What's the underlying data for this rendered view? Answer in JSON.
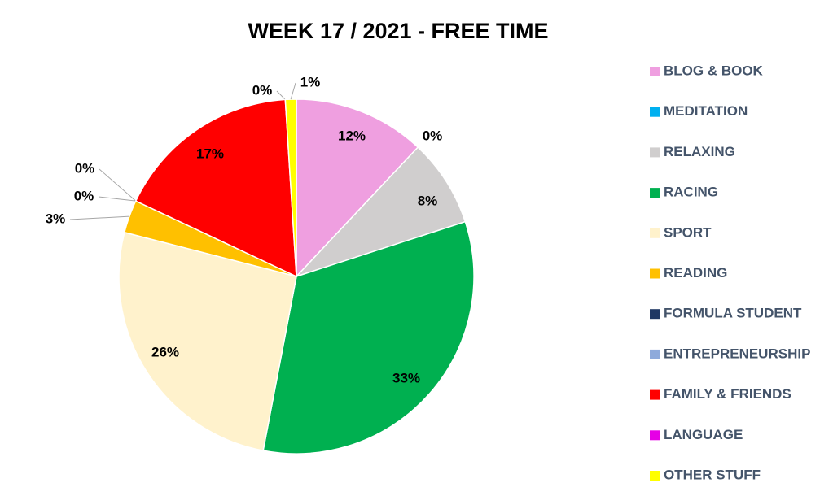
{
  "chart_data": {
    "type": "pie",
    "title": "WEEK 17 / 2021 - FREE TIME",
    "categories": [
      "BLOG & BOOK",
      "MEDITATION",
      "RELAXING",
      "RACING",
      "SPORT",
      "READING",
      "FORMULA STUDENT",
      "ENTREPRENEURSHIP",
      "FAMILY & FRIENDS",
      "LANGUAGE",
      "OTHER STUFF"
    ],
    "values": [
      12,
      0,
      8,
      33,
      26,
      3,
      0,
      0,
      17,
      0,
      1
    ],
    "value_labels": [
      "12%",
      "0%",
      "8%",
      "33%",
      "26%",
      "3%",
      "0%",
      "0%",
      "17%",
      "0%",
      "1%"
    ],
    "colors": [
      "#ef9fe0",
      "#00b0f0",
      "#d0cece",
      "#00b050",
      "#fff2cc",
      "#ffc000",
      "#1f3864",
      "#8eaadb",
      "#ff0000",
      "#e600e6",
      "#ffff00"
    ],
    "legend": "right"
  }
}
